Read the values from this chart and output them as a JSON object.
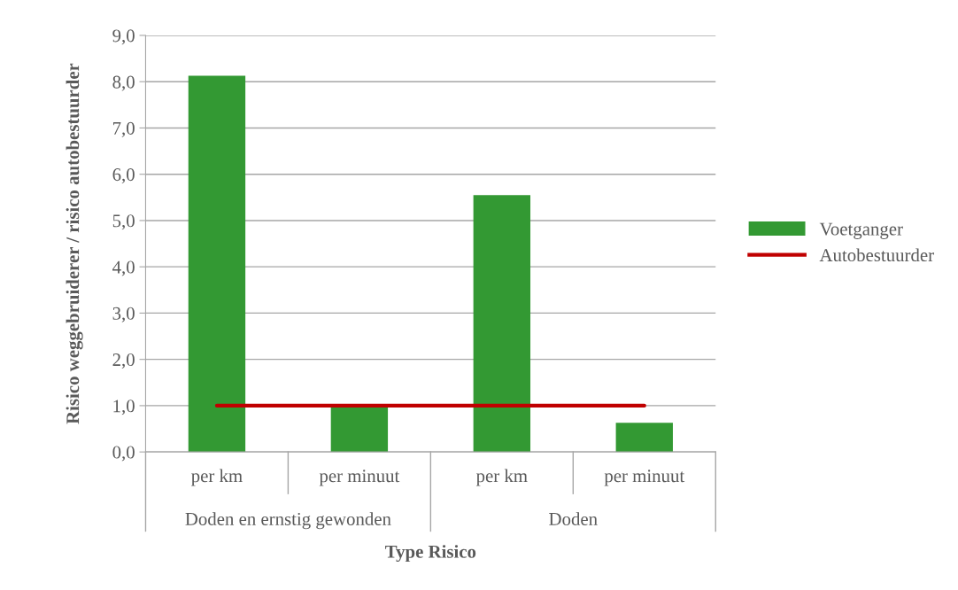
{
  "chart_data": {
    "type": "bar",
    "xlabel": "Type Risico",
    "ylabel": "Risico weggebruiderer / risico autobestuurder",
    "categories": [
      "per km",
      "per minuut",
      "per km",
      "per minuut"
    ],
    "series": [
      {
        "name": "Voetganger",
        "color": "#339933",
        "values": [
          8.13,
          0.98,
          5.55,
          0.63
        ]
      },
      {
        "name": "Autobestuurder",
        "type": "line",
        "color": "#c00000",
        "values": [
          1.0,
          1.0,
          1.0,
          1.0
        ]
      }
    ],
    "annotations": [
      "Doden en ernstig gewonden",
      "Doden"
    ],
    "ylim": [
      0,
      9
    ],
    "yticks": [
      {
        "value": 0,
        "label": "0,0"
      },
      {
        "value": 1,
        "label": "1,0"
      },
      {
        "value": 2,
        "label": "2,0"
      },
      {
        "value": 3,
        "label": "3,0"
      },
      {
        "value": 4,
        "label": "4,0"
      },
      {
        "value": 5,
        "label": "5,0"
      },
      {
        "value": 6,
        "label": "6,0"
      },
      {
        "value": 7,
        "label": "7,0"
      },
      {
        "value": 8,
        "label": "8,0"
      },
      {
        "value": 9,
        "label": "9,0"
      }
    ],
    "grid": "y",
    "legend": "right"
  }
}
